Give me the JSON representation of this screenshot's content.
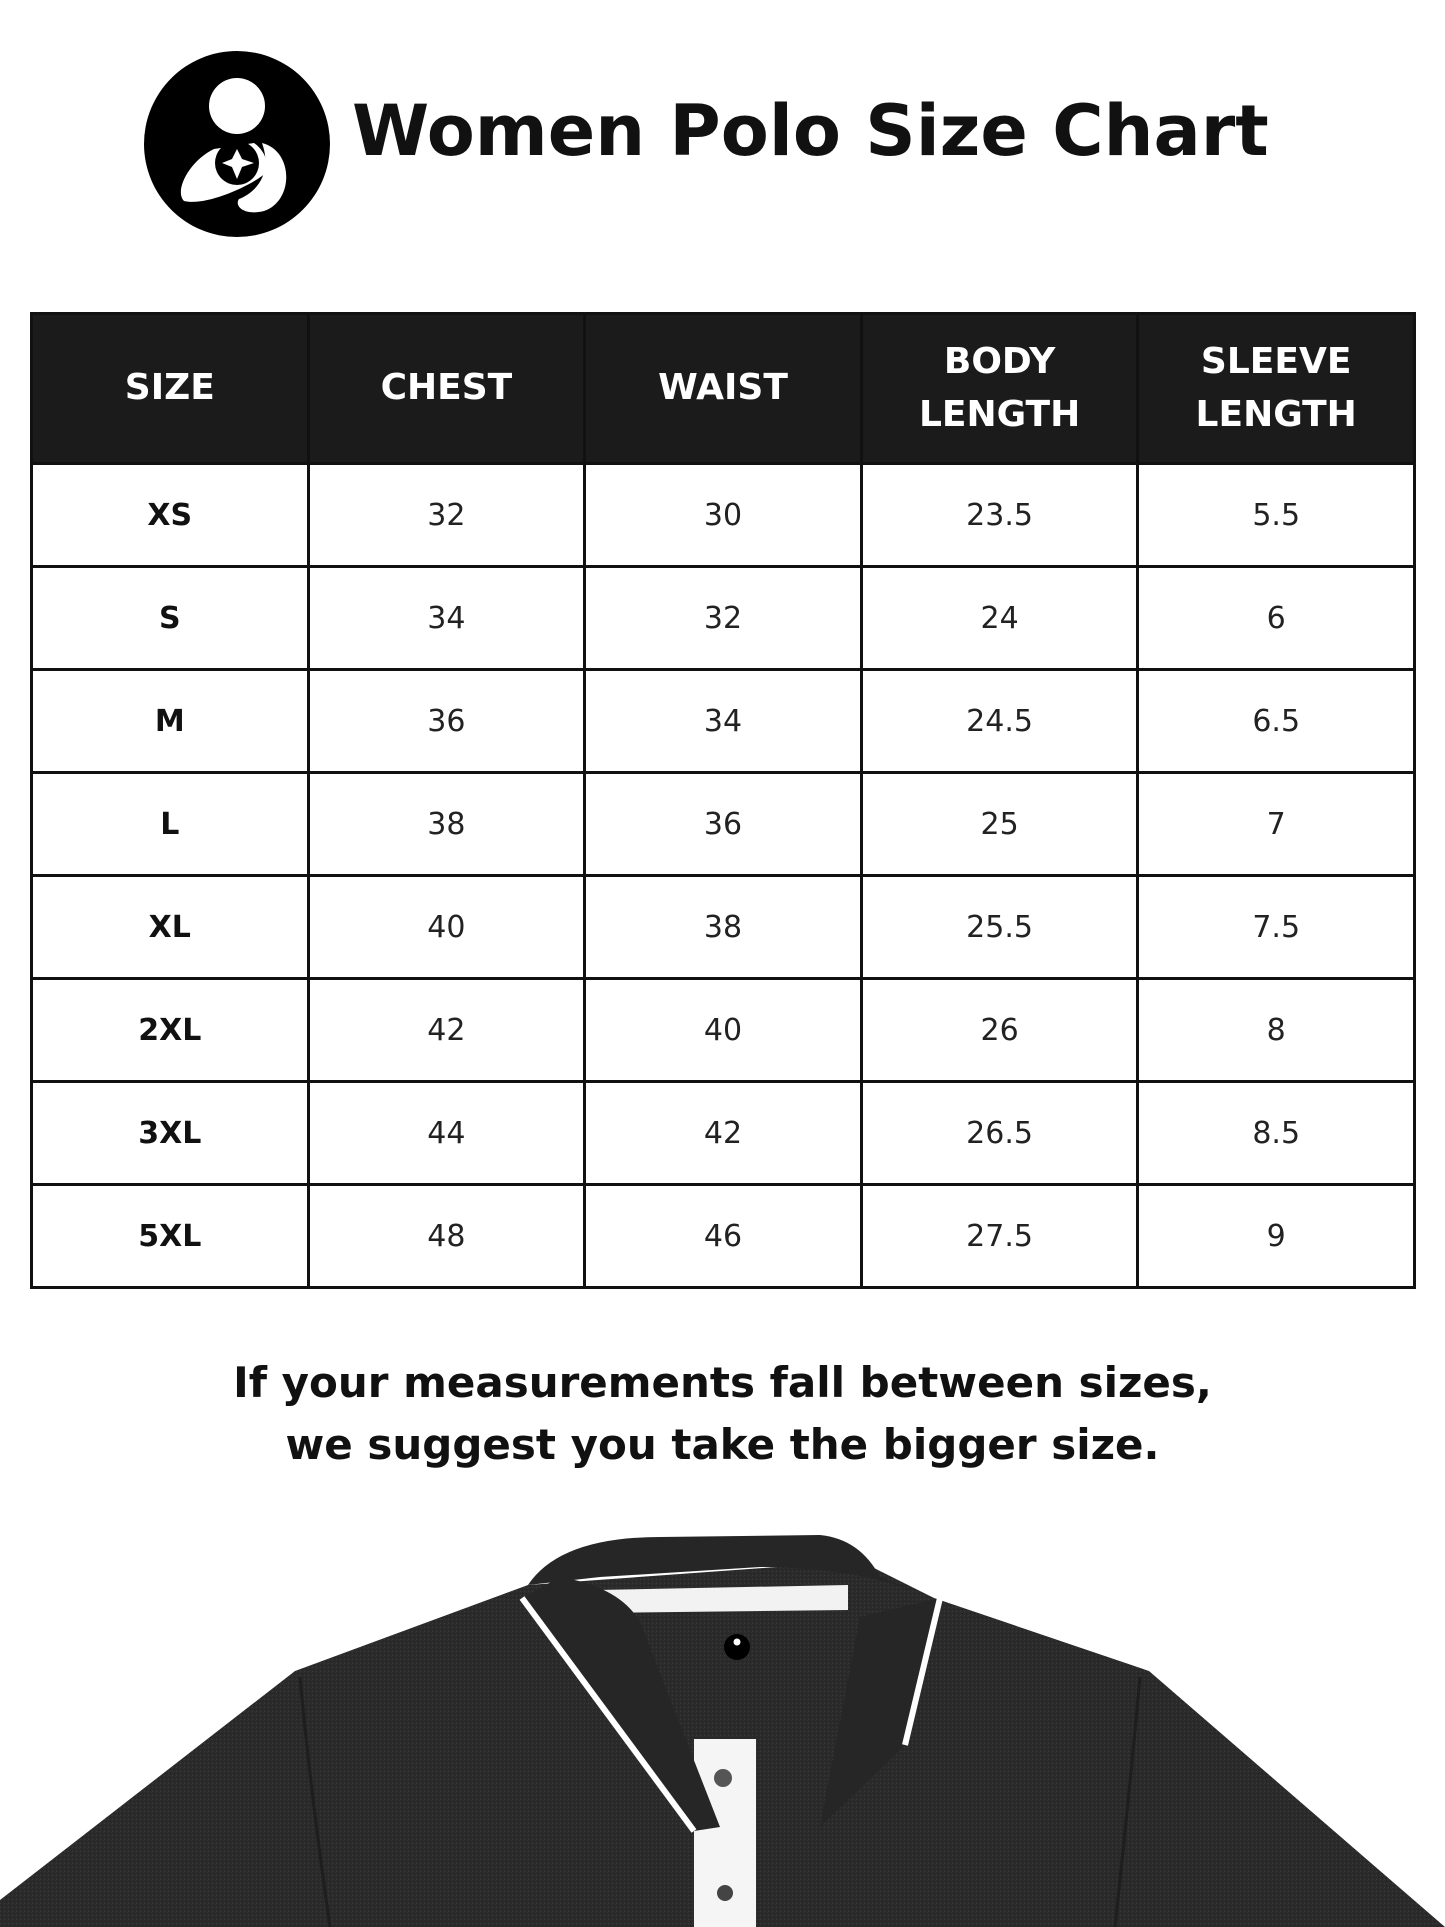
{
  "header": {
    "title": "Women Polo Size Chart",
    "logo_icon": "mother-child-logo-icon"
  },
  "table": {
    "columns": [
      {
        "line1": "SIZE",
        "line2": ""
      },
      {
        "line1": "CHEST",
        "line2": ""
      },
      {
        "line1": "WAIST",
        "line2": ""
      },
      {
        "line1": "BODY",
        "line2": "LENGTH"
      },
      {
        "line1": "SLEEVE",
        "line2": "LENGTH"
      }
    ],
    "rows": [
      [
        "XS",
        "32",
        "30",
        "23.5",
        "5.5"
      ],
      [
        "S",
        "34",
        "32",
        "24",
        "6"
      ],
      [
        "M",
        "36",
        "34",
        "24.5",
        "6.5"
      ],
      [
        "L",
        "38",
        "36",
        "25",
        "7"
      ],
      [
        "XL",
        "40",
        "38",
        "25.5",
        "7.5"
      ],
      [
        "2XL",
        "42",
        "40",
        "26",
        "8"
      ],
      [
        "3XL",
        "44",
        "42",
        "26.5",
        "8.5"
      ],
      [
        "5XL",
        "48",
        "46",
        "27.5",
        "9"
      ]
    ]
  },
  "note": {
    "line1": "If your measurements fall between sizes,",
    "line2": "we suggest you take the bigger size."
  },
  "colors": {
    "header_bg": "#1b1b1b",
    "shirt": "#2a2a2a",
    "tipping": "#ffffff"
  }
}
